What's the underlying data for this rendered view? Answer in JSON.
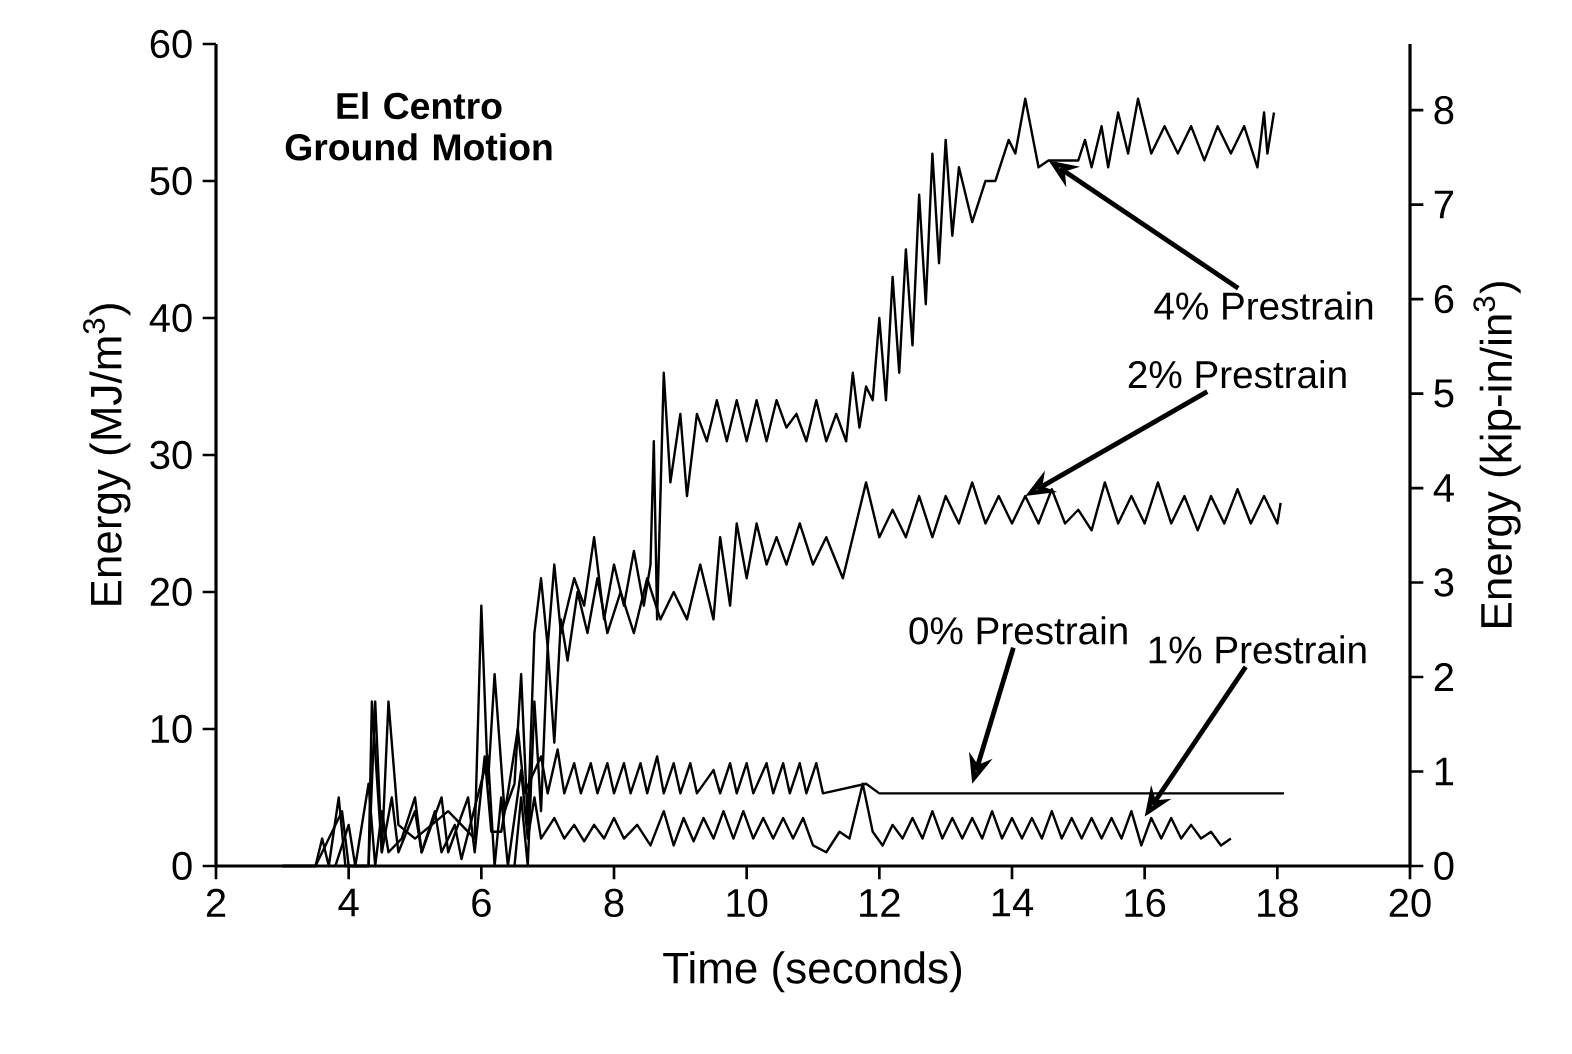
{
  "chart_data": {
    "type": "line",
    "xlabel": "Time (seconds)",
    "ylabel": "Energy (MJ/m$^{3}$)",
    "y2label": "Energy (kip-in/in$^{3}$)",
    "xlim": [
      2,
      20
    ],
    "xticks": [
      2,
      4,
      6,
      8,
      10,
      12,
      14,
      16,
      18,
      20
    ],
    "ylim": [
      0,
      60
    ],
    "yticks": [
      0,
      10,
      20,
      30,
      40,
      50,
      60
    ],
    "y2lim": [
      0,
      8.7
    ],
    "y2ticks": [
      0,
      1,
      2,
      3,
      4,
      5,
      6,
      7,
      8
    ],
    "grid": false,
    "annotations": [
      "El Centro Ground Motion",
      {
        "text": "4% Prestrain",
        "x": 14.55,
        "y": 51.5
      },
      {
        "text": "2% Prestrain",
        "x": 14.2,
        "y": 27
      },
      {
        "text": "0% Prestrain",
        "x": 13.4,
        "y": 6.0
      },
      {
        "text": "1% Prestrain",
        "x": 16.0,
        "y": 3.6
      }
    ],
    "series": [
      {
        "color": "#000000",
        "x": [
          3.0,
          3.5,
          3.9,
          4.0,
          4.3,
          4.35,
          4.5,
          4.6,
          4.75,
          5.0,
          5.5,
          5.9,
          6.0,
          6.1,
          6.2,
          6.35,
          6.5,
          6.6,
          6.7,
          6.8,
          6.9,
          7.0,
          7.1,
          7.2,
          7.4,
          7.55,
          7.7,
          7.85,
          8.0,
          8.15,
          8.3,
          8.45,
          8.55,
          8.6,
          8.65,
          8.75,
          8.85,
          9.0,
          9.1,
          9.25,
          9.4,
          9.55,
          9.7,
          9.85,
          10.0,
          10.15,
          10.3,
          10.45,
          10.6,
          10.75,
          10.9,
          11.05,
          11.2,
          11.35,
          11.5,
          11.6,
          11.7,
          11.8,
          11.9,
          12.0,
          12.1,
          12.2,
          12.3,
          12.4,
          12.5,
          12.6,
          12.7,
          12.8,
          12.9,
          13.0,
          13.1,
          13.2,
          13.4,
          13.6,
          13.75,
          13.95,
          14.05,
          14.2,
          14.4,
          14.55,
          15.0,
          15.1,
          15.2,
          15.35,
          15.45,
          15.6,
          15.75,
          15.9,
          16.1,
          16.3,
          16.5,
          16.7,
          16.9,
          17.1,
          17.3,
          17.5,
          17.7,
          17.8,
          17.85,
          17.95
        ],
        "values": [
          0,
          0,
          4,
          0,
          0,
          12,
          1,
          12,
          3,
          2,
          4,
          2,
          19,
          6,
          14,
          4,
          6,
          14,
          3,
          17,
          21,
          16,
          22,
          17,
          21,
          19,
          24,
          18,
          22,
          19,
          23,
          19,
          22,
          31,
          18,
          36,
          28,
          33,
          27,
          33,
          31,
          34,
          31,
          34,
          31,
          34,
          31,
          34,
          32,
          33,
          31,
          34,
          31,
          33,
          31,
          36,
          32,
          35,
          34,
          40,
          34,
          43,
          36,
          45,
          38,
          49,
          41,
          52,
          44,
          53,
          46,
          51,
          47,
          50,
          50,
          53,
          52,
          56,
          51,
          51.5,
          51.5,
          53,
          51,
          54,
          51,
          55,
          52,
          56,
          52,
          54,
          52,
          54,
          51.5,
          54,
          52,
          54,
          51,
          55,
          52,
          55
        ]
      },
      {
        "color": "#000000",
        "x": [
          6.5,
          6.6,
          6.7,
          6.8,
          6.9,
          7.0,
          7.1,
          7.2,
          7.3,
          7.45,
          7.6,
          7.75,
          7.9,
          8.1,
          8.3,
          8.5,
          8.7,
          8.9,
          9.1,
          9.3,
          9.5,
          9.6,
          9.75,
          9.85,
          10.0,
          10.15,
          10.3,
          10.45,
          10.6,
          10.8,
          11.0,
          11.2,
          11.45,
          11.8,
          12.0,
          12.2,
          12.4,
          12.6,
          12.8,
          13.0,
          13.2,
          13.4,
          13.6,
          13.8,
          14.0,
          14.2,
          14.4,
          14.6,
          14.8,
          15.0,
          15.2,
          15.4,
          15.6,
          15.8,
          16.0,
          16.2,
          16.4,
          16.6,
          16.8,
          17.0,
          17.2,
          17.4,
          17.6,
          17.8,
          18.0,
          18.05
        ],
        "values": [
          0,
          5,
          0,
          12,
          4,
          16,
          9,
          18,
          15,
          20,
          17,
          21,
          17,
          20,
          17,
          21,
          18,
          20,
          18,
          22,
          18,
          24,
          19,
          25,
          21,
          25,
          22,
          24,
          22,
          25,
          22,
          24,
          21,
          28,
          24,
          26,
          24,
          27,
          24,
          27,
          25,
          28,
          25,
          27,
          25,
          27,
          25,
          27.5,
          25,
          26,
          24.5,
          28,
          25,
          27,
          25,
          28,
          25,
          27,
          24.5,
          27,
          25,
          27.5,
          25,
          27,
          25,
          26.5
        ]
      },
      {
        "color": "#000000",
        "x": [
          3.0,
          3.5,
          3.6,
          3.7,
          3.85,
          3.95,
          4.3,
          4.4,
          4.5,
          4.65,
          4.75,
          5.0,
          5.1,
          5.4,
          5.5,
          5.8,
          5.9,
          6.05,
          6.15,
          6.3,
          6.4,
          6.55,
          6.65,
          6.9,
          7.0,
          7.15,
          7.25,
          7.4,
          7.5,
          7.65,
          7.75,
          7.9,
          8.0,
          8.15,
          8.25,
          8.4,
          8.5,
          8.65,
          8.75,
          8.9,
          9.0,
          9.15,
          9.25,
          9.5,
          9.6,
          9.75,
          9.85,
          10.0,
          10.1,
          10.3,
          10.4,
          10.55,
          10.65,
          10.8,
          10.9,
          11.05,
          11.15,
          11.8,
          12.0,
          18.1
        ],
        "values": [
          0,
          0,
          2,
          0,
          5,
          0,
          0,
          12,
          1,
          5,
          1,
          4,
          1,
          5,
          1,
          5,
          1,
          8,
          2.5,
          2.5,
          5.3,
          10,
          5.3,
          8,
          5.3,
          8.5,
          5.3,
          7.5,
          5.3,
          7.5,
          5.3,
          7.5,
          5.3,
          7.5,
          5.3,
          7.5,
          5.3,
          8,
          5.3,
          7.5,
          5.3,
          7.5,
          5.3,
          7,
          5.3,
          7.5,
          5.3,
          7.5,
          5.3,
          7.5,
          5.3,
          7.5,
          5.3,
          7.5,
          5.3,
          7.5,
          5.3,
          6,
          5.3,
          5.3
        ]
      },
      {
        "color": "#000000",
        "x": [
          3.8,
          4.0,
          4.1,
          4.3,
          4.4,
          4.5,
          4.6,
          4.8,
          5.0,
          5.1,
          5.3,
          5.4,
          5.6,
          5.7,
          6.1,
          6.2,
          6.3,
          6.4,
          6.6,
          6.7,
          6.8,
          6.9,
          7.1,
          7.25,
          7.4,
          7.55,
          7.7,
          7.85,
          8.0,
          8.15,
          8.35,
          8.55,
          8.75,
          8.9,
          9.05,
          9.2,
          9.35,
          9.5,
          9.65,
          9.8,
          9.95,
          10.1,
          10.25,
          10.4,
          10.55,
          10.7,
          10.85,
          11.0,
          11.2,
          11.4,
          11.55,
          11.75,
          11.9,
          12.05,
          12.2,
          12.35,
          12.5,
          12.65,
          12.8,
          12.95,
          13.1,
          13.25,
          13.4,
          13.55,
          13.7,
          13.85,
          14.0,
          14.15,
          14.3,
          14.45,
          14.6,
          14.75,
          14.9,
          15.05,
          15.2,
          15.35,
          15.5,
          15.65,
          15.8,
          15.95,
          16.1,
          16.25,
          16.4,
          16.55,
          16.7,
          16.85,
          17.0,
          17.15,
          17.3
        ],
        "values": [
          0,
          3,
          0,
          6,
          0,
          4,
          1,
          2,
          5,
          1,
          4,
          1,
          3,
          0.5,
          8,
          0,
          5,
          0,
          7,
          2,
          5,
          2,
          3.5,
          2,
          3,
          1.8,
          3,
          2,
          3.5,
          2,
          3,
          1.5,
          4,
          1.5,
          3.5,
          1.8,
          3.5,
          2,
          4,
          2,
          4,
          2,
          3.5,
          2,
          3.5,
          2,
          3.5,
          1.5,
          1,
          2.5,
          2,
          6,
          2.5,
          1.5,
          3,
          2,
          3.5,
          2,
          4,
          2,
          3.5,
          2,
          3.5,
          2,
          4,
          2,
          3.5,
          2,
          3.5,
          2,
          4,
          2,
          3.5,
          2,
          3.5,
          2,
          3.5,
          2,
          4,
          1.5,
          3.5,
          2,
          3.5,
          2,
          3,
          2,
          2.5,
          1.5,
          2
        ]
      }
    ]
  }
}
